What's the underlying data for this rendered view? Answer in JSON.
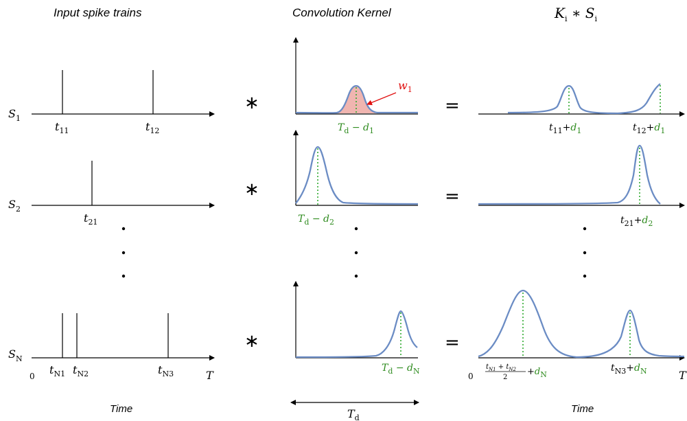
{
  "headers": {
    "input": "Input spike trains",
    "kernel": "Convolution Kernel",
    "result_main": "K",
    "result_sub_k": "i",
    "result_op": " ∗ ",
    "result_s": "S",
    "result_sub_s": "i"
  },
  "trains": [
    {
      "label": "S",
      "sub": "1",
      "spikes": [
        {
          "t": "t",
          "s": "11"
        },
        {
          "t": "t",
          "s": "12"
        }
      ]
    },
    {
      "label": "S",
      "sub": "2",
      "spikes": [
        {
          "t": "t",
          "s": "21"
        }
      ]
    },
    {
      "label": "S",
      "sub": "N",
      "spikes": [
        {
          "t": "t",
          "s": "N1"
        },
        {
          "t": "t",
          "s": "N2"
        },
        {
          "t": "t",
          "s": "N3"
        }
      ]
    }
  ],
  "kernels": [
    {
      "main": "T",
      "sub1": "d",
      "minus": " − d",
      "sub2": "1"
    },
    {
      "main": "T",
      "sub1": "d",
      "minus": " − d",
      "sub2": "2"
    },
    {
      "main": "T",
      "sub1": "d",
      "minus": " − d",
      "sub2": "N"
    }
  ],
  "weight": {
    "main": "w",
    "sub": "1"
  },
  "results": [
    [
      {
        "t": "t",
        "s": "11",
        "plus": "+",
        "d": "d",
        "ds": "1"
      },
      {
        "t": "t",
        "s": "12",
        "plus": "+",
        "d": "d",
        "ds": "1"
      }
    ],
    [
      {
        "t": "t",
        "s": "21",
        "plus": "+",
        "d": "d",
        "ds": "2"
      }
    ],
    [
      {
        "frac_top_a": "t",
        "frac_top_as": "N1",
        "frac_plus": " + ",
        "frac_top_b": "t",
        "frac_top_bs": "N2",
        "frac_bottom": "2",
        "plus": "+",
        "d": "d",
        "ds": "N"
      },
      {
        "t": "t",
        "s": "N3",
        "plus": "+",
        "d": "d",
        "ds": "N"
      }
    ]
  ],
  "operators": {
    "conv": "∗",
    "equals": "="
  },
  "axis": {
    "zero": "0",
    "T": "T"
  },
  "time_label": "Time",
  "width_label": {
    "main": "T",
    "sub": "d"
  },
  "colors": {
    "curve": "#6b8cc4",
    "fill": "#f0b5b0",
    "green": "#2e8b1e",
    "red": "#e01010"
  }
}
